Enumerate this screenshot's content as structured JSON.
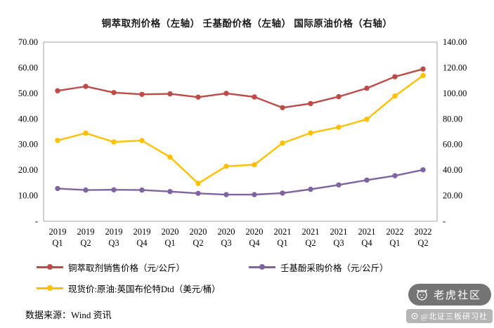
{
  "title": "铜萃取剂价格（左轴） 壬基酚价格（左轴） 国际原油价格（右轴）",
  "source": "数据来源：Wind 资讯",
  "watermark": {
    "community_label": "老虎社区",
    "badge_label": "@北证三板研习社"
  },
  "chart_data": {
    "type": "line",
    "title": "铜萃取剂价格（左轴） 壬基酚价格（左轴） 国际原油价格（右轴）",
    "grid": false,
    "legend_position": "bottom",
    "categories": [
      "2019 Q1",
      "2019 Q2",
      "2019 Q3",
      "2019 Q4",
      "2020 Q1",
      "2020 Q2",
      "2020 Q3",
      "2020 Q4",
      "2021 Q1",
      "2021 Q2",
      "2021 Q3",
      "2021 Q4",
      "2022 Q1",
      "2022 Q2"
    ],
    "left_axis": {
      "min": 0,
      "max": 70,
      "tick_labels": [
        "70.00",
        "60.00",
        "50.00",
        "40.00",
        "30.00",
        "20.00",
        "10.00",
        "-"
      ]
    },
    "right_axis": {
      "min": 0,
      "max": 140,
      "tick_labels": [
        "140.00",
        "120.00",
        "100.00",
        "80.00",
        "60.00",
        "40.00",
        "20.00",
        "-"
      ]
    },
    "frame_color": "#A6A6A6",
    "series": [
      {
        "name": "铜萃取剂销售价格（元/公斤）",
        "axis": "left",
        "color": "#BE4B48",
        "values": [
          51.0,
          52.7,
          50.3,
          49.6,
          49.8,
          48.5,
          50.0,
          48.6,
          44.4,
          46.0,
          48.7,
          52.0,
          56.5,
          59.5
        ]
      },
      {
        "name": "壬基酚采购价格（元/公斤）",
        "axis": "left",
        "color": "#8064A2",
        "values": [
          12.8,
          12.2,
          12.3,
          12.2,
          11.6,
          10.9,
          10.4,
          10.4,
          11.0,
          12.5,
          14.2,
          16.1,
          17.8,
          20.1
        ]
      },
      {
        "name": "现货价:原油:英国布伦特Dtd（美元/桶）",
        "axis": "right",
        "color": "#FFC000",
        "values": [
          63.2,
          68.9,
          62.0,
          63.1,
          50.1,
          29.6,
          43.0,
          44.2,
          61.1,
          69.0,
          73.5,
          79.7,
          97.9,
          113.9
        ]
      }
    ]
  }
}
